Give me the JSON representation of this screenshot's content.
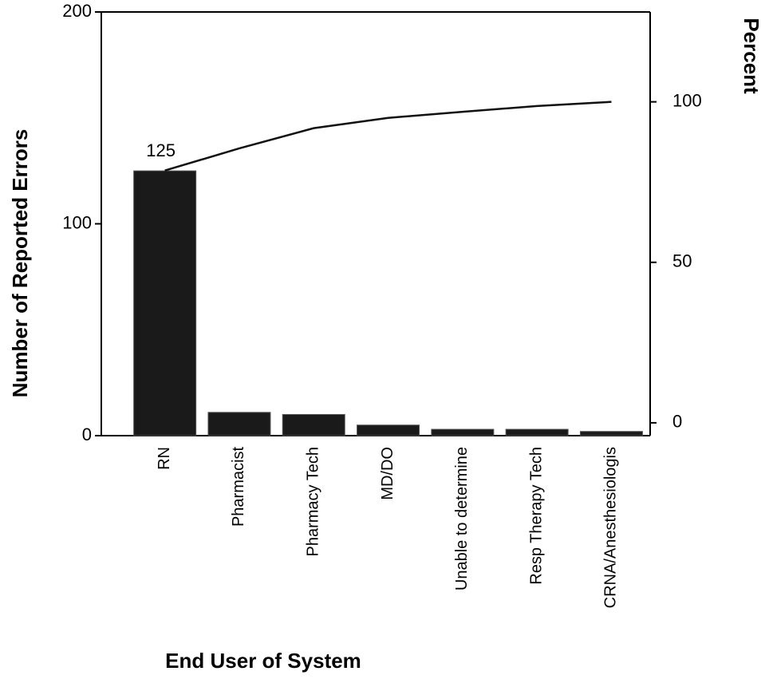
{
  "chart_data": {
    "type": "bar",
    "x_label": "End User of System",
    "y_label": "Number of Reported Errors",
    "y2_label": "Percent",
    "categories": [
      "RN",
      "Pharmacist",
      "Pharmacy Tech",
      "MD/DO",
      "Unable to determine",
      "Resp Therapy Tech",
      "CRNA/Anesthesiologis"
    ],
    "series": [
      {
        "type": "bar",
        "color": "#1a1a1a",
        "values": [
          125,
          11,
          10,
          5,
          3,
          3,
          2
        ]
      },
      {
        "type": "line",
        "axis": "y2",
        "color": "#111111",
        "values": [
          78.6,
          85.5,
          91.8,
          95.0,
          96.9,
          98.7,
          100
        ]
      }
    ],
    "value_label_series": 0,
    "value_label_index": 0,
    "ylim": [
      0,
      200
    ],
    "yticks": [
      0,
      100,
      200
    ],
    "y2lim": [
      -4,
      128
    ],
    "y2ticks": [
      0,
      50,
      100
    ]
  }
}
